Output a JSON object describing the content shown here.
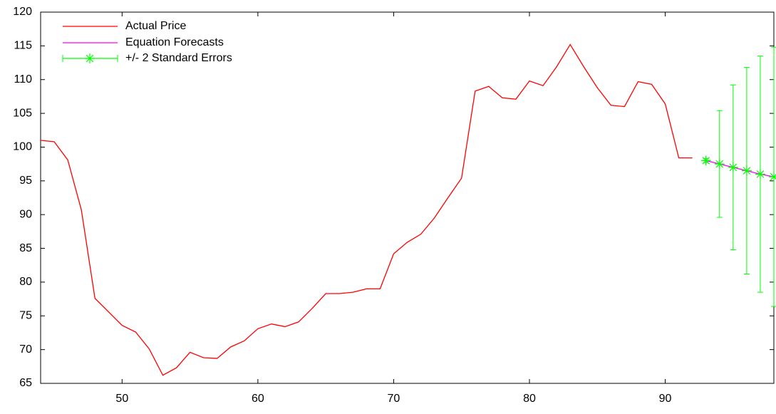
{
  "chart_data": {
    "type": "line",
    "xlim": [
      44,
      98
    ],
    "xticks": [
      50,
      60,
      70,
      80,
      90
    ],
    "ylim": [
      65,
      120
    ],
    "yticks": [
      65,
      70,
      75,
      80,
      85,
      90,
      95,
      100,
      105,
      110,
      115,
      120
    ],
    "grid": false,
    "legend": "upper left",
    "series": [
      {
        "name": "Actual Price",
        "color": "#ff0000",
        "x": [
          44,
          45,
          46,
          47,
          48,
          49,
          50,
          51,
          52,
          53,
          54,
          55,
          56,
          57,
          58,
          59,
          60,
          61,
          62,
          63,
          64,
          65,
          66,
          67,
          68,
          69,
          70,
          71,
          72,
          73,
          74,
          75,
          76,
          77,
          78,
          79,
          80,
          81,
          82,
          83,
          84,
          85,
          86,
          87,
          88,
          89,
          90,
          91,
          92
        ],
        "values": [
          101.0,
          100.8,
          98.1,
          90.7,
          77.6,
          75.6,
          73.6,
          72.6,
          70.1,
          66.2,
          67.3,
          69.6,
          68.8,
          68.7,
          70.4,
          71.3,
          73.1,
          73.8,
          73.4,
          74.1,
          76.1,
          78.3,
          78.3,
          78.5,
          79.0,
          79.0,
          84.2,
          85.9,
          87.1,
          89.5,
          92.5,
          95.4,
          108.3,
          109.0,
          107.3,
          107.1,
          109.8,
          109.1,
          111.9,
          115.2,
          111.9,
          108.8,
          106.2,
          106.0,
          109.7,
          109.3,
          106.4,
          98.4,
          98.4
        ]
      },
      {
        "name": "Equation Forecasts",
        "color": "#ff00ff",
        "x": [
          93,
          94,
          95,
          96,
          97,
          98
        ],
        "values": [
          98.0,
          97.5,
          97.0,
          96.5,
          96.0,
          95.6
        ]
      },
      {
        "name": "+/- 2 Standard Errors",
        "color": "#00ff00",
        "x": [
          93,
          94,
          95,
          96,
          97,
          98
        ],
        "values": [
          98.0,
          97.5,
          97.0,
          96.5,
          96.0,
          95.6
        ],
        "errors": [
          0.3,
          7.9,
          12.2,
          15.3,
          17.5,
          19.2
        ]
      }
    ]
  }
}
